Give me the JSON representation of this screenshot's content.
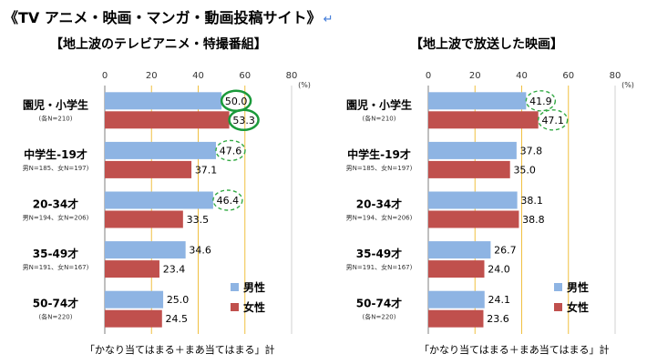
{
  "page_title": "《TV アニメ・映画・マンガ・動画投稿サイト》",
  "return_mark": "↵",
  "colors": {
    "male": "#8eb4e3",
    "female": "#c0504d",
    "gridline": "#f0c040",
    "circle_solid": "#1a9a3a",
    "circle_dashed": "#33aa44"
  },
  "chart_data": [
    {
      "type": "bar",
      "title": "【地上波のテレビアニメ・特撮番組】",
      "unit_label": "(%)",
      "xlim": [
        0,
        80
      ],
      "ticks": [
        "0",
        "20",
        "40",
        "60",
        "80"
      ],
      "categories": [
        {
          "label": "園児・小学生",
          "sub": "(各N=210)"
        },
        {
          "label": "中学生-19才",
          "sub": "男N=185、女N=197)"
        },
        {
          "label": "20-34才",
          "sub": "男N=194、女N=206)"
        },
        {
          "label": "35-49才",
          "sub": "男N=191、女N=167)"
        },
        {
          "label": "50-74才",
          "sub": "(各N=220)"
        }
      ],
      "series": [
        {
          "name": "男性",
          "values": [
            50.0,
            47.6,
            46.4,
            34.6,
            25.0
          ],
          "labels": [
            "50.0",
            "47.6",
            "46.4",
            "34.6",
            "25.0"
          ],
          "circled": [
            "solid",
            "dashed",
            "dashed",
            null,
            null
          ]
        },
        {
          "name": "女性",
          "values": [
            53.3,
            37.1,
            33.5,
            23.4,
            24.5
          ],
          "labels": [
            "53.3",
            "37.1",
            "33.5",
            "23.4",
            "24.5"
          ],
          "circled": [
            "solid",
            null,
            null,
            null,
            null
          ]
        }
      ],
      "footer": "「かなり当てはまる＋まあ当てはまる」計",
      "legend_position": "lower-right",
      "grid": true
    },
    {
      "type": "bar",
      "title": "【地上波で放送した映画】",
      "unit_label": "(%)",
      "xlim": [
        0,
        80
      ],
      "ticks": [
        "0",
        "20",
        "40",
        "60",
        "80"
      ],
      "categories": [
        {
          "label": "園児・小学生",
          "sub": "(各N=210)"
        },
        {
          "label": "中学生-19才",
          "sub": "男N=185、女N=197)"
        },
        {
          "label": "20-34才",
          "sub": "男N=194、女N=206)"
        },
        {
          "label": "35-49才",
          "sub": "男N=191、女N=167)"
        },
        {
          "label": "50-74才",
          "sub": "(各N=220)"
        }
      ],
      "series": [
        {
          "name": "男性",
          "values": [
            41.9,
            37.8,
            38.1,
            26.7,
            24.1
          ],
          "labels": [
            "41.9",
            "37.8",
            "38.1",
            "26.7",
            "24.1"
          ],
          "circled": [
            "dashed",
            null,
            null,
            null,
            null
          ]
        },
        {
          "name": "女性",
          "values": [
            47.1,
            35.0,
            38.8,
            24.0,
            23.6
          ],
          "labels": [
            "47.1",
            "35.0",
            "38.8",
            "24.0",
            "23.6"
          ],
          "circled": [
            "dashed",
            null,
            null,
            null,
            null
          ]
        }
      ],
      "footer": "「かなり当てはまる＋まあ当てはまる」計",
      "legend_position": "lower-right",
      "grid": true
    }
  ]
}
